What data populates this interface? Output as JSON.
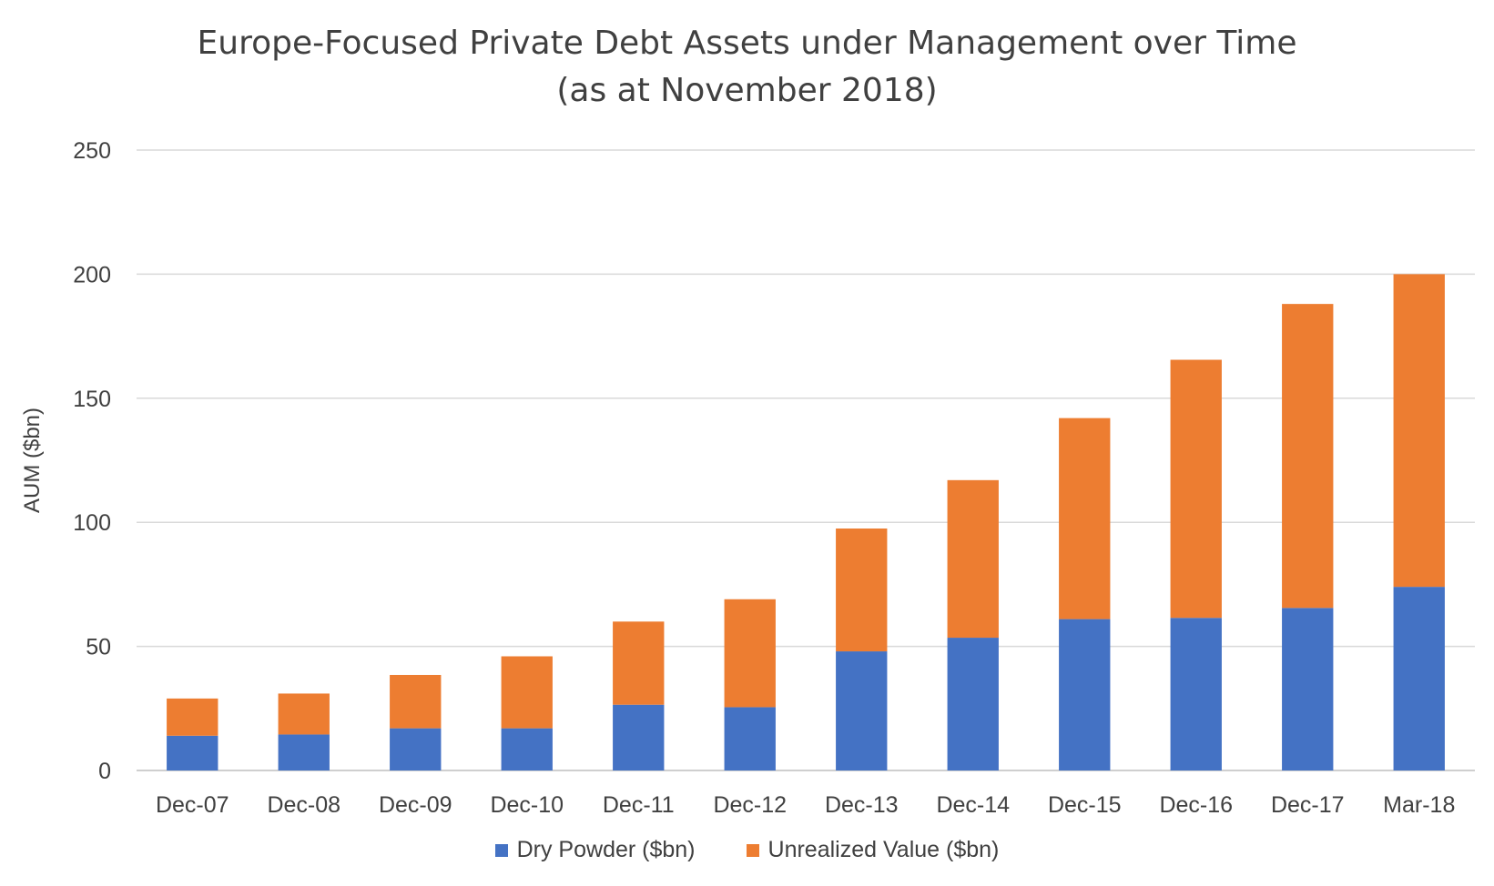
{
  "chart_data": {
    "type": "bar",
    "stacked": true,
    "title": "Europe-Focused Private Debt Assets under Management over Time",
    "subtitle": "(as at November 2018)",
    "xlabel": "",
    "ylabel": "AUM ($bn)",
    "ylim": [
      0,
      250
    ],
    "yticks": [
      0,
      50,
      100,
      150,
      200,
      250
    ],
    "grid": true,
    "legend_position": "bottom",
    "categories": [
      "Dec-07",
      "Dec-08",
      "Dec-09",
      "Dec-10",
      "Dec-11",
      "Dec-12",
      "Dec-13",
      "Dec-14",
      "Dec-15",
      "Dec-16",
      "Dec-17",
      "Mar-18"
    ],
    "series": [
      {
        "name": "Dry Powder ($bn)",
        "color": "#4472C4",
        "values": [
          14,
          14.5,
          17,
          17,
          26.5,
          25.5,
          48,
          53.5,
          61,
          61.5,
          65.5,
          74
        ]
      },
      {
        "name": "Unrealized Value ($bn)",
        "color": "#ED7D31",
        "values": [
          15,
          16.5,
          21.5,
          29,
          33.5,
          43.5,
          49.5,
          63.5,
          81,
          104,
          122.5,
          126
        ]
      }
    ]
  }
}
